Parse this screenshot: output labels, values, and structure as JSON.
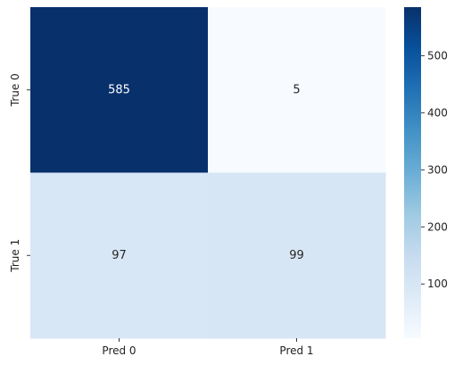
{
  "chart_data": {
    "type": "heatmap",
    "title": "",
    "xlabel": "",
    "ylabel": "",
    "x_categories": [
      "Pred 0",
      "Pred 1"
    ],
    "y_categories": [
      "True 0",
      "True 1"
    ],
    "values": [
      [
        585,
        5
      ],
      [
        97,
        99
      ]
    ],
    "colormap": "Blues",
    "colorbar": {
      "range": [
        5,
        585
      ],
      "ticks": [
        100,
        200,
        300,
        400,
        500
      ]
    },
    "annotations": true,
    "grid": false
  }
}
